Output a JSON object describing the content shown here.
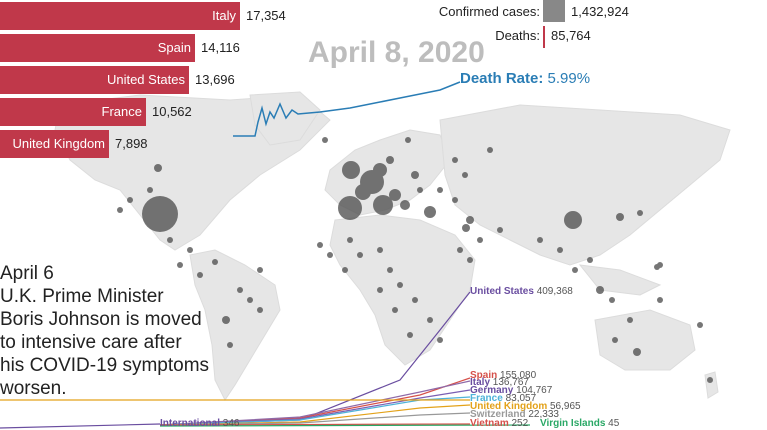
{
  "date": "April 8, 2020",
  "death_rate": {
    "label": "Death Rate:",
    "value": "5.99%"
  },
  "stats": {
    "confirmed_label": "Confirmed cases:",
    "confirmed_value": "1,432,924",
    "deaths_label": "Deaths:",
    "deaths_value": "85,764"
  },
  "death_bars": [
    {
      "country": "Italy",
      "label": "17,354",
      "value": 17354
    },
    {
      "country": "Spain",
      "label": "14,116",
      "value": 14116
    },
    {
      "country": "United States",
      "label": "13,696",
      "value": 13696
    },
    {
      "country": "France",
      "label": "10,562",
      "value": 10562
    },
    {
      "country": "United Kingdom",
      "label": "7,898",
      "value": 7898
    }
  ],
  "annotation": {
    "lines": [
      "April 6",
      "U.K. Prime Minister",
      "Boris Johnson is moved",
      "to intensive care after",
      "his COVID-19 symptoms",
      "worsen."
    ]
  },
  "curve_labels": [
    {
      "name": "United States",
      "value": "409,368",
      "color": "#6a4ea0"
    },
    {
      "name": "Spain",
      "value": "155,080",
      "color": "#d6504a"
    },
    {
      "name": "Italy",
      "value": "136,767",
      "color": "#6a4ea0"
    },
    {
      "name": "Germany",
      "value": "104,767",
      "color": "#6a4ea0"
    },
    {
      "name": "France",
      "value": "83,057",
      "color": "#4fb3d9"
    },
    {
      "name": "United Kingdom",
      "value": "56,965",
      "color": "#e3a21a"
    },
    {
      "name": "Switzerland",
      "value": "22,333",
      "color": "#999999"
    },
    {
      "name": "Vietnam",
      "value": "252",
      "color": "#d6504a"
    },
    {
      "name": "Virgin Islands",
      "value": "45",
      "color": "#2aa866"
    },
    {
      "name": "International",
      "value": "346",
      "color": "#6a4ea0"
    }
  ],
  "colors": {
    "bar": "#c0384a",
    "death_rate_line": "#2a7db5",
    "map_land": "#e6e6e6",
    "bubble": "#555555"
  }
}
